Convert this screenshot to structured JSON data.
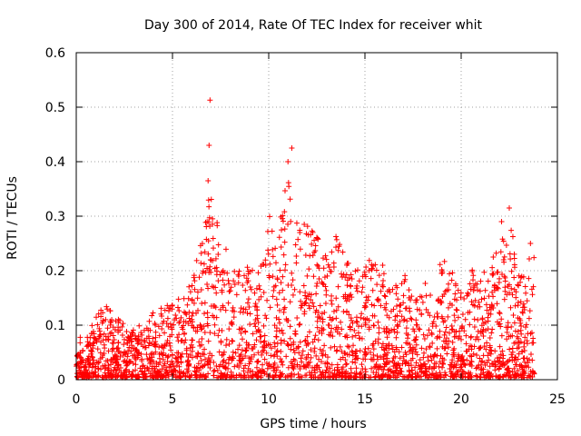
{
  "chart_data": {
    "type": "scatter",
    "title": "Day 300 of 2014, Rate Of TEC Index for receiver whit",
    "xlabel": "GPS time / hours",
    "ylabel": "ROTI / TECUs",
    "xlim": [
      0,
      25
    ],
    "ylim": [
      0,
      0.6
    ],
    "xticks": [
      0,
      5,
      10,
      15,
      20,
      25
    ],
    "xtick_labels": [
      "0",
      "5",
      "10",
      "15",
      "20",
      "25"
    ],
    "yticks": [
      0,
      0.1,
      0.2,
      0.3,
      0.4,
      0.5,
      0.6
    ],
    "ytick_labels": [
      "0",
      "0.1",
      "0.2",
      "0.3",
      "0.4",
      "0.5",
      "0.6"
    ],
    "grid": true,
    "marker": "+",
    "color": "#ff0000",
    "series": [
      {
        "name": "ROTI",
        "envelope_x": [
          0,
          0.5,
          1,
          1.5,
          2,
          2.5,
          3,
          3.5,
          4,
          4.5,
          5,
          5.5,
          6,
          6.5,
          7,
          7.5,
          8,
          8.5,
          9,
          9.5,
          10,
          10.5,
          11,
          11.5,
          12,
          12.5,
          13,
          13.5,
          14,
          14.5,
          15,
          15.5,
          16,
          16.5,
          17,
          17.5,
          18,
          18.5,
          19,
          19.5,
          20,
          20.5,
          21,
          21.5,
          22,
          22.5,
          23,
          23.5,
          23.8
        ],
        "envelope_y": [
          0.09,
          0.07,
          0.11,
          0.14,
          0.12,
          0.1,
          0.09,
          0.1,
          0.12,
          0.13,
          0.14,
          0.15,
          0.18,
          0.25,
          0.36,
          0.28,
          0.22,
          0.2,
          0.22,
          0.19,
          0.31,
          0.26,
          0.4,
          0.3,
          0.28,
          0.26,
          0.22,
          0.27,
          0.23,
          0.2,
          0.2,
          0.24,
          0.2,
          0.17,
          0.2,
          0.14,
          0.18,
          0.16,
          0.22,
          0.2,
          0.16,
          0.2,
          0.19,
          0.2,
          0.27,
          0.31,
          0.19,
          0.23,
          0.25
        ],
        "outliers": [
          {
            "x": 6.95,
            "y": 0.513
          },
          {
            "x": 6.9,
            "y": 0.43
          },
          {
            "x": 6.85,
            "y": 0.365
          },
          {
            "x": 11.2,
            "y": 0.425
          },
          {
            "x": 11.0,
            "y": 0.4
          },
          {
            "x": 22.5,
            "y": 0.315
          },
          {
            "x": 22.1,
            "y": 0.29
          },
          {
            "x": 23.6,
            "y": 0.25
          }
        ]
      }
    ]
  }
}
